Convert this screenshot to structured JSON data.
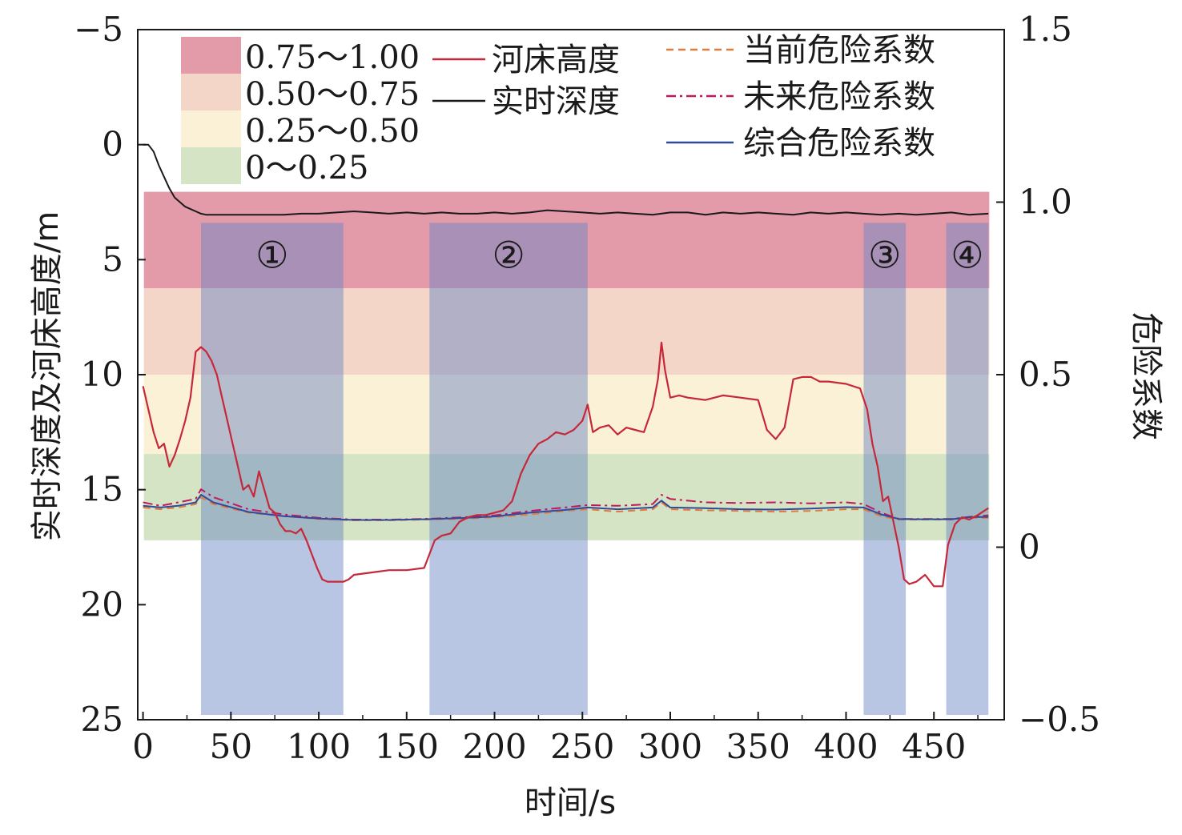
{
  "chart_data": {
    "type": "line",
    "xlabel": "时间/s",
    "ylabel_left": "实时深度及河床高度/m",
    "ylabel_right": "危险系数",
    "xlim": [
      -3,
      490
    ],
    "ylim_left": [
      -5,
      25
    ],
    "ylim_left_inverted": true,
    "ylim_right": [
      -0.5,
      1.5
    ],
    "x_ticks": [
      0,
      50,
      100,
      150,
      200,
      250,
      300,
      350,
      400,
      450
    ],
    "y_left_ticks": [
      "−5",
      "0",
      "5",
      "10",
      "15",
      "20",
      "25"
    ],
    "y_left_tick_values": [
      -5,
      0,
      5,
      10,
      15,
      20,
      25
    ],
    "y_right_ticks": [
      "−0.5",
      "0",
      "0.5",
      "1.0",
      "1.5"
    ],
    "y_right_tick_values": [
      -0.5,
      0,
      0.5,
      1.0,
      1.5
    ],
    "bands": [
      {
        "label": "0.75～1.00",
        "from": 0.75,
        "to": 1.03,
        "color": "#e39aa9"
      },
      {
        "label": "0.50～0.75",
        "from": 0.5,
        "to": 0.75,
        "color": "#f3d6c8"
      },
      {
        "label": "0.25～0.50",
        "from": 0.25,
        "to": 0.5,
        "color": "#fbf1d7"
      },
      {
        "label": "0～0.25",
        "from": 0.02,
        "to": 0.27,
        "color": "#d4e4c4"
      }
    ],
    "regions": [
      {
        "label": "①",
        "x0": 33,
        "x1": 114
      },
      {
        "label": "②",
        "x0": 163,
        "x1": 253
      },
      {
        "label": "③",
        "x0": 410,
        "x1": 434
      },
      {
        "label": "④",
        "x0": 457,
        "x1": 481
      }
    ],
    "series": [
      {
        "name": "河床高度",
        "axis": "left",
        "color": "#c6283a",
        "x": [
          0,
          3,
          6,
          9,
          12,
          15,
          18,
          21,
          24,
          27,
          30,
          33,
          36,
          39,
          42,
          45,
          48,
          51,
          54,
          57,
          60,
          63,
          66,
          69,
          72,
          75,
          78,
          81,
          84,
          87,
          90,
          93,
          96,
          99,
          102,
          105,
          108,
          111,
          114,
          117,
          120,
          130,
          140,
          150,
          160,
          163,
          166,
          170,
          175,
          180,
          185,
          190,
          195,
          200,
          205,
          210,
          215,
          220,
          225,
          230,
          235,
          240,
          245,
          250,
          253,
          256,
          260,
          265,
          270,
          275,
          280,
          285,
          290,
          293,
          295,
          297,
          300,
          305,
          310,
          320,
          330,
          340,
          350,
          355,
          360,
          365,
          370,
          375,
          380,
          385,
          390,
          400,
          408,
          412,
          415,
          418,
          421,
          424,
          427,
          430,
          433,
          436,
          440,
          445,
          450,
          455,
          458,
          462,
          466,
          470,
          475,
          481
        ],
        "y": [
          10.5,
          11.5,
          12.5,
          13.2,
          13.0,
          14.0,
          13.5,
          12.8,
          12.0,
          11.0,
          9.0,
          8.8,
          9.0,
          9.4,
          10.0,
          11.0,
          12.0,
          13.0,
          14.0,
          15.0,
          14.8,
          15.3,
          14.2,
          15.0,
          15.8,
          16.0,
          16.5,
          16.8,
          16.8,
          16.9,
          16.7,
          17.2,
          17.8,
          18.4,
          18.9,
          19.0,
          19.0,
          19.0,
          19.0,
          18.9,
          18.7,
          18.6,
          18.5,
          18.5,
          18.4,
          17.8,
          17.2,
          17.0,
          16.9,
          16.4,
          16.2,
          16.1,
          16.1,
          16.0,
          15.9,
          15.5,
          14.3,
          13.5,
          13.0,
          12.8,
          12.5,
          12.6,
          12.4,
          12.0,
          11.3,
          12.5,
          12.3,
          12.2,
          12.6,
          12.3,
          12.4,
          12.5,
          11.4,
          10.2,
          8.6,
          9.8,
          11.0,
          10.9,
          11.0,
          11.1,
          10.9,
          11.0,
          11.1,
          12.4,
          12.8,
          12.3,
          10.2,
          10.1,
          10.1,
          10.3,
          10.3,
          10.4,
          10.6,
          11.5,
          13.0,
          14.0,
          15.5,
          15.3,
          16.4,
          17.5,
          18.9,
          19.1,
          19.0,
          18.7,
          19.2,
          19.2,
          17.4,
          16.5,
          16.2,
          16.3,
          16.1,
          15.8
        ]
      },
      {
        "name": "实时深度",
        "axis": "left",
        "color": "#1a1a1a",
        "x": [
          0,
          3,
          6,
          9,
          12,
          15,
          18,
          21,
          24,
          27,
          30,
          33,
          36,
          40,
          50,
          60,
          70,
          80,
          90,
          100,
          110,
          120,
          130,
          140,
          150,
          160,
          170,
          180,
          190,
          200,
          210,
          220,
          230,
          240,
          250,
          260,
          270,
          280,
          290,
          300,
          310,
          320,
          330,
          340,
          350,
          360,
          370,
          380,
          390,
          400,
          410,
          420,
          430,
          440,
          450,
          460,
          470,
          481
        ],
        "y": [
          0,
          0,
          0.3,
          0.9,
          1.4,
          1.9,
          2.3,
          2.5,
          2.7,
          2.8,
          2.9,
          3.0,
          3.05,
          3.05,
          3.05,
          3.05,
          3.05,
          3.05,
          3.0,
          3.0,
          2.95,
          2.9,
          2.95,
          3.0,
          2.95,
          3.0,
          2.95,
          3.0,
          3.0,
          2.95,
          3.0,
          2.95,
          2.85,
          2.9,
          2.95,
          3.0,
          2.95,
          3.0,
          3.05,
          2.95,
          2.95,
          3.05,
          2.95,
          3.0,
          2.95,
          3.0,
          3.05,
          2.95,
          3.0,
          2.95,
          3.0,
          3.05,
          3.0,
          3.05,
          3.0,
          2.95,
          3.05,
          3.0
        ]
      },
      {
        "name": "当前危险系数",
        "axis": "right",
        "color": "#e07b39",
        "x": [
          0,
          10,
          20,
          30,
          33,
          40,
          60,
          80,
          100,
          120,
          140,
          160,
          180,
          200,
          220,
          240,
          253,
          270,
          290,
          295,
          300,
          320,
          340,
          360,
          380,
          400,
          410,
          420,
          430,
          440,
          460,
          470,
          481
        ],
        "y": [
          0.115,
          0.11,
          0.115,
          0.125,
          0.145,
          0.125,
          0.1,
          0.09,
          0.082,
          0.078,
          0.078,
          0.08,
          0.082,
          0.087,
          0.095,
          0.105,
          0.11,
          0.103,
          0.11,
          0.13,
          0.11,
          0.107,
          0.105,
          0.103,
          0.105,
          0.11,
          0.11,
          0.09,
          0.08,
          0.08,
          0.08,
          0.085,
          0.085
        ]
      },
      {
        "name": "未来危险系数",
        "axis": "right",
        "color": "#c2185b",
        "x": [
          0,
          10,
          20,
          30,
          33,
          40,
          60,
          80,
          100,
          120,
          140,
          160,
          180,
          200,
          220,
          240,
          253,
          270,
          290,
          295,
          300,
          320,
          340,
          360,
          380,
          400,
          410,
          420,
          430,
          440,
          460,
          470,
          481
        ],
        "y": [
          0.13,
          0.12,
          0.13,
          0.14,
          0.168,
          0.145,
          0.11,
          0.095,
          0.085,
          0.08,
          0.08,
          0.082,
          0.086,
          0.092,
          0.105,
          0.115,
          0.122,
          0.12,
          0.125,
          0.152,
          0.14,
          0.13,
          0.128,
          0.13,
          0.127,
          0.13,
          0.125,
          0.1,
          0.082,
          0.082,
          0.082,
          0.088,
          0.092
        ]
      },
      {
        "name": "综合危险系数",
        "axis": "right",
        "color": "#2f4a9e",
        "x": [
          0,
          10,
          20,
          30,
          33,
          40,
          60,
          80,
          100,
          120,
          140,
          160,
          180,
          200,
          220,
          240,
          253,
          270,
          290,
          295,
          300,
          320,
          340,
          360,
          380,
          400,
          410,
          420,
          430,
          440,
          460,
          470,
          481
        ],
        "y": [
          0.12,
          0.115,
          0.12,
          0.13,
          0.152,
          0.13,
          0.102,
          0.09,
          0.083,
          0.079,
          0.079,
          0.081,
          0.084,
          0.089,
          0.1,
          0.108,
          0.115,
          0.11,
          0.115,
          0.135,
          0.115,
          0.113,
          0.11,
          0.109,
          0.112,
          0.116,
          0.115,
          0.095,
          0.082,
          0.081,
          0.081,
          0.087,
          0.088
        ]
      }
    ]
  }
}
